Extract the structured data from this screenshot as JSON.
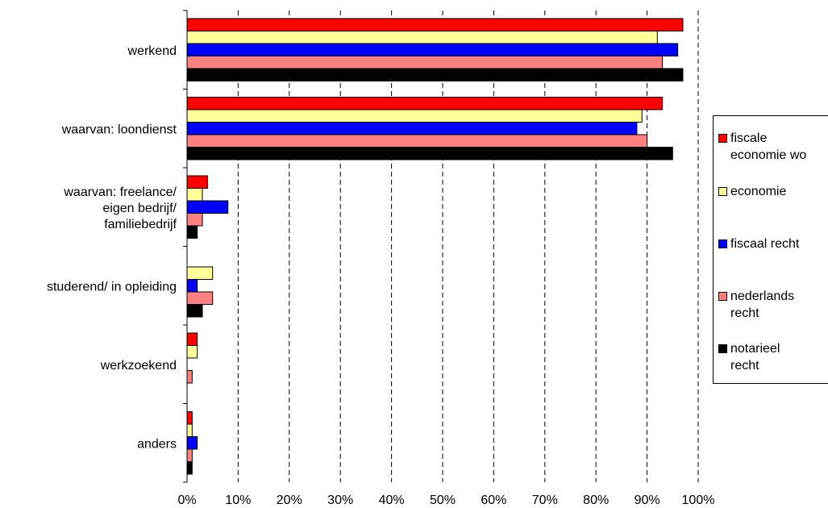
{
  "chart_data": {
    "type": "bar",
    "orientation": "horizontal",
    "categories": [
      "werkend",
      "waarvan: loondienst",
      "waarvan: freelance/\neigen bedrijf/\nfamiliebedrijf",
      "studerend/ in opleiding",
      "werkzoekend",
      "anders"
    ],
    "series": [
      {
        "name": "fiscale economie wo",
        "color": "#ff0000",
        "values": [
          97,
          93,
          4,
          0,
          2,
          1
        ]
      },
      {
        "name": "economie",
        "color": "#ffff99",
        "values": [
          92,
          89,
          3,
          5,
          2,
          1
        ]
      },
      {
        "name": "fiscaal recht",
        "color": "#0000ff",
        "values": [
          96,
          88,
          8,
          2,
          0,
          2
        ]
      },
      {
        "name": "nederlands recht",
        "color": "#ff8080",
        "values": [
          93,
          90,
          3,
          5,
          1,
          1
        ]
      },
      {
        "name": "notarieel recht",
        "color": "#000000",
        "values": [
          97,
          95,
          2,
          3,
          0,
          1
        ]
      }
    ],
    "xlim": [
      0,
      100
    ],
    "x_ticks": [
      "0%",
      "10%",
      "20%",
      "30%",
      "40%",
      "50%",
      "60%",
      "70%",
      "80%",
      "90%",
      "100%"
    ],
    "grid": "vertical dashed",
    "legend_position": "right"
  },
  "legend": {
    "labels": [
      "fiscale\neconomie wo",
      "economie",
      "fiscaal recht",
      "nederlands\nrecht",
      "notarieel\nrecht"
    ]
  }
}
